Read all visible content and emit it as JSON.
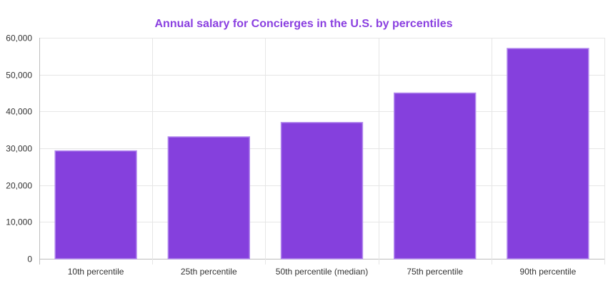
{
  "chart_data": {
    "type": "bar",
    "title": "Annual salary for Concierges in the U.S. by percentiles",
    "categories": [
      "10th percentile",
      "25th percentile",
      "50th percentile (median)",
      "75th percentile",
      "90th percentile"
    ],
    "values": [
      29300,
      33100,
      37000,
      45000,
      57100
    ],
    "ylim": [
      0,
      60000
    ],
    "yticks": [
      "0",
      "10,000",
      "20,000",
      "30,000",
      "40,000",
      "50,000",
      "60,000"
    ],
    "ytick_values": [
      0,
      10000,
      20000,
      30000,
      40000,
      50000,
      60000
    ],
    "grid": true,
    "legend": "none",
    "colors": {
      "bar_fill": "#8540DD",
      "bar_stroke": "#B48BEE",
      "title": "#8A3FE0",
      "grid": "#E6E6E6",
      "axis": "#BDBDBD",
      "tick_text": "#333333"
    }
  }
}
